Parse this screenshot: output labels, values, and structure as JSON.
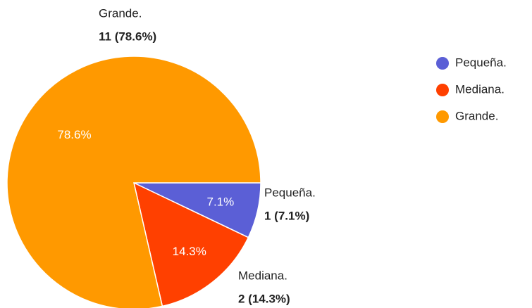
{
  "chart_data": {
    "type": "pie",
    "categories": [
      "Pequeña.",
      "Mediana.",
      "Grande."
    ],
    "values": [
      7.1,
      14.3,
      78.6
    ],
    "value_labels": [
      "7.1%",
      "14.3%",
      "78.6%"
    ],
    "counts": [
      1,
      2,
      11
    ],
    "count_labels": [
      "1 (7.1%)",
      "2 (14.3%)",
      "11 (78.6%)"
    ],
    "colors": [
      "#5b5fd6",
      "#ff4000",
      "#ff9900"
    ],
    "legend": "right"
  }
}
